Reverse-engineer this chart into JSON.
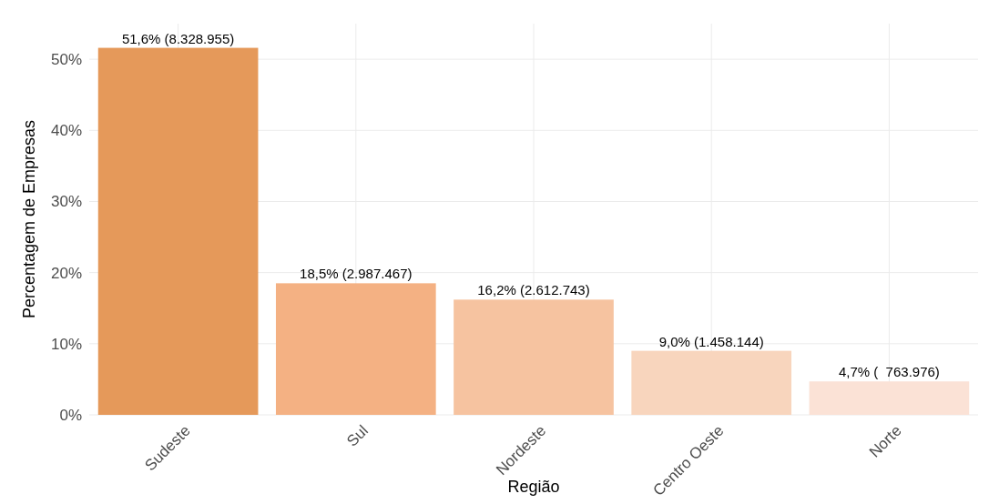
{
  "chart_data": {
    "type": "bar",
    "xlabel": "Região",
    "ylabel": "Percentagem de Empresas",
    "categories": [
      "Sudeste",
      "Sul",
      "Nordeste",
      "Centro Oeste",
      "Norte"
    ],
    "values": [
      51.6,
      18.5,
      16.2,
      9.0,
      4.7
    ],
    "colors": [
      "#e5995a",
      "#f4b183",
      "#f6c3a0",
      "#f8d5bd",
      "#fbe2d6"
    ],
    "value_labels": [
      "51,6% (8.328.955)",
      "18,5% (2.987.467)",
      "16,2% (2.612.743)",
      "9,0% (1.458.144)",
      "4,7% (  763.976)"
    ],
    "ylim": [
      0,
      55
    ],
    "yticks": [
      {
        "value": 0,
        "label": "0%"
      },
      {
        "value": 10,
        "label": "10%"
      },
      {
        "value": 20,
        "label": "20%"
      },
      {
        "value": 30,
        "label": "30%"
      },
      {
        "value": 40,
        "label": "40%"
      },
      {
        "value": 50,
        "label": "50%"
      }
    ],
    "grid": true
  }
}
